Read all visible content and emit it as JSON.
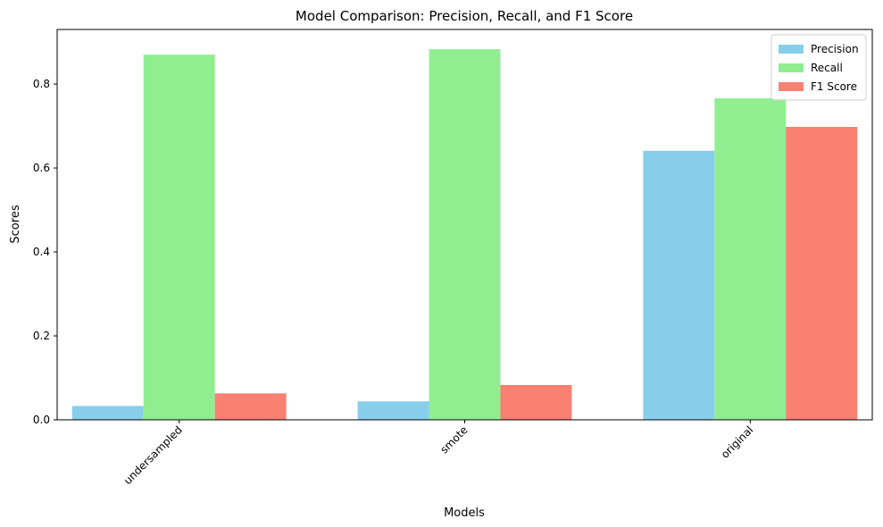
{
  "chart_data": {
    "type": "bar",
    "title": "Model Comparison: Precision, Recall, and F1 Score",
    "xlabel": "Models",
    "ylabel": "Scores",
    "categories": [
      "undersampled",
      "smote",
      "original"
    ],
    "series": [
      {
        "name": "Precision",
        "color": "#87ceeb",
        "values": [
          0.033,
          0.044,
          0.641
        ]
      },
      {
        "name": "Recall",
        "color": "#90ee90",
        "values": [
          0.87,
          0.883,
          0.766
        ]
      },
      {
        "name": "F1 Score",
        "color": "#fa8072",
        "values": [
          0.063,
          0.083,
          0.698
        ]
      }
    ],
    "ylim": [
      0,
      0.93
    ],
    "yticks": [
      0.0,
      0.2,
      0.4,
      0.6,
      0.8
    ],
    "ytick_labels": [
      "0.0",
      "0.2",
      "0.4",
      "0.6",
      "0.8"
    ],
    "x_tick_rotation": "45 degrees",
    "legend_position": "top-right",
    "grid": false
  }
}
